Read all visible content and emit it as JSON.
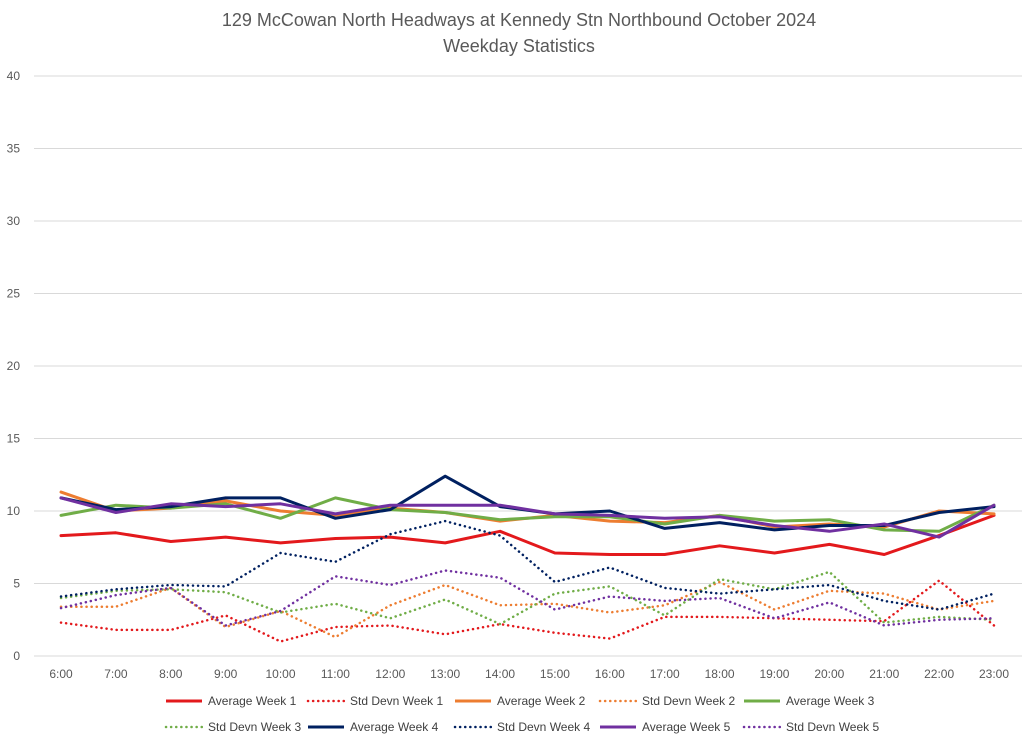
{
  "chart_data": {
    "type": "line",
    "title": "129 McCowan North Headways at Kennedy Stn Northbound October 2024",
    "subtitle": "Weekday Statistics",
    "xlabel": "",
    "ylabel": "",
    "ylim": [
      0,
      40
    ],
    "yticks": [
      "0",
      "5",
      "10",
      "15",
      "20",
      "25",
      "30",
      "35",
      "40"
    ],
    "grid": true,
    "legend_position": "bottom",
    "categories": [
      "6:00",
      "7:00",
      "8:00",
      "9:00",
      "10:00",
      "11:00",
      "12:00",
      "13:00",
      "14:00",
      "15:00",
      "16:00",
      "17:00",
      "18:00",
      "19:00",
      "20:00",
      "21:00",
      "22:00",
      "23:00"
    ],
    "series": [
      {
        "name": "Average Week 1",
        "color": "#e3191c",
        "style": "solid",
        "values": [
          8.3,
          8.5,
          7.9,
          8.2,
          7.8,
          8.1,
          8.2,
          7.8,
          8.6,
          7.1,
          7.0,
          7.0,
          7.6,
          7.1,
          7.7,
          7.0,
          8.3,
          9.7
        ]
      },
      {
        "name": "Std Devn Week 1",
        "color": "#e3191c",
        "style": "dotted",
        "values": [
          2.3,
          1.8,
          1.8,
          2.8,
          1.0,
          2.0,
          2.1,
          1.5,
          2.2,
          1.6,
          1.2,
          2.7,
          2.7,
          2.6,
          2.5,
          2.4,
          5.2,
          2.1
        ]
      },
      {
        "name": "Average Week 2",
        "color": "#ed7d31",
        "style": "solid",
        "values": [
          11.3,
          10.0,
          10.2,
          10.7,
          10.0,
          9.7,
          10.2,
          9.9,
          9.3,
          9.7,
          9.3,
          9.2,
          9.7,
          8.9,
          9.1,
          8.9,
          10.0,
          9.8
        ]
      },
      {
        "name": "Std Devn Week 2",
        "color": "#ed7d31",
        "style": "dotted",
        "values": [
          3.4,
          3.4,
          4.7,
          2.0,
          3.1,
          1.3,
          3.5,
          4.9,
          3.5,
          3.6,
          3.0,
          3.5,
          5.1,
          3.2,
          4.5,
          4.3,
          3.2,
          3.8
        ]
      },
      {
        "name": "Average Week 3",
        "color": "#70ad47",
        "style": "solid",
        "values": [
          9.7,
          10.4,
          10.2,
          10.5,
          9.5,
          10.9,
          10.1,
          9.9,
          9.4,
          9.6,
          9.6,
          9.1,
          9.7,
          9.3,
          9.4,
          8.7,
          8.6,
          10.4
        ]
      },
      {
        "name": "Std Devn Week 3",
        "color": "#70ad47",
        "style": "dotted",
        "values": [
          4.0,
          4.5,
          4.6,
          4.4,
          3.0,
          3.6,
          2.6,
          3.9,
          2.2,
          4.3,
          4.8,
          2.8,
          5.3,
          4.6,
          5.8,
          2.3,
          2.7,
          2.5
        ]
      },
      {
        "name": "Average Week 4",
        "color": "#002060",
        "style": "solid",
        "values": [
          10.9,
          10.1,
          10.3,
          10.9,
          10.9,
          9.5,
          10.1,
          12.4,
          10.3,
          9.8,
          10.0,
          8.8,
          9.2,
          8.7,
          9.0,
          9.0,
          9.9,
          10.3
        ]
      },
      {
        "name": "Std Devn Week 4",
        "color": "#002060",
        "style": "dotted",
        "values": [
          4.1,
          4.6,
          4.9,
          4.8,
          7.1,
          6.5,
          8.4,
          9.3,
          8.3,
          5.1,
          6.1,
          4.7,
          4.3,
          4.6,
          4.9,
          3.8,
          3.2,
          4.3
        ]
      },
      {
        "name": "Average Week 5",
        "color": "#7030a0",
        "style": "solid",
        "values": [
          10.9,
          9.9,
          10.5,
          10.3,
          10.5,
          9.8,
          10.4,
          10.4,
          10.4,
          9.8,
          9.7,
          9.5,
          9.6,
          9.0,
          8.6,
          9.1,
          8.2,
          10.4
        ]
      },
      {
        "name": "Std Devn Week 5",
        "color": "#7030a0",
        "style": "dotted",
        "values": [
          3.3,
          4.2,
          4.7,
          2.1,
          3.1,
          5.5,
          4.9,
          5.9,
          5.4,
          3.2,
          4.1,
          3.8,
          4.0,
          2.6,
          3.7,
          2.1,
          2.5,
          2.6
        ]
      }
    ]
  }
}
